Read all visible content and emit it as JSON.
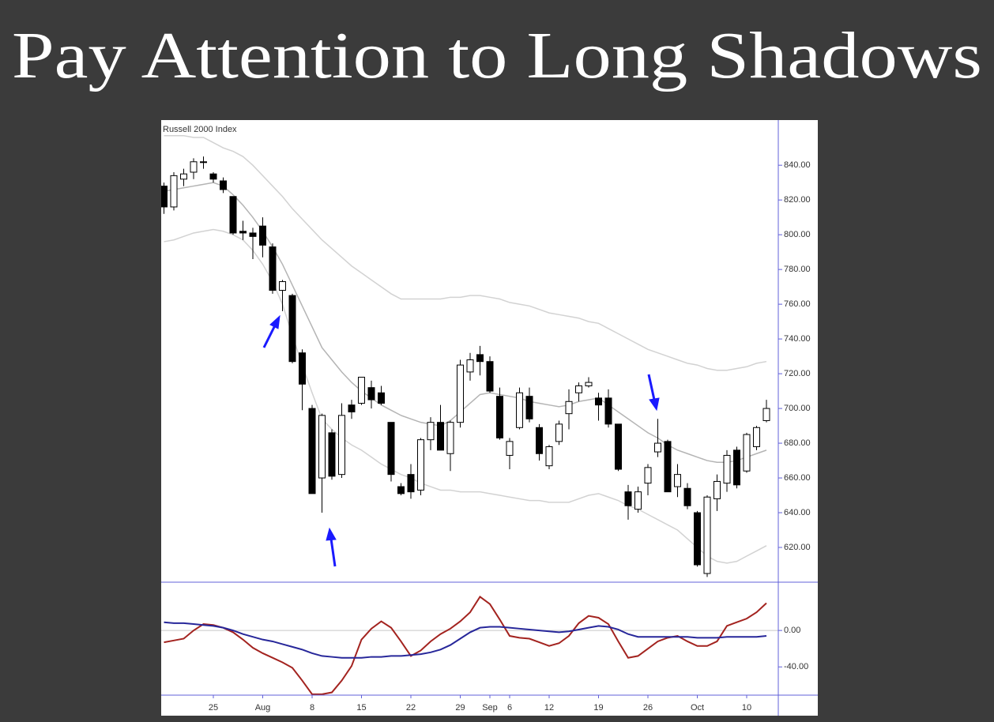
{
  "title": "Pay Attention to Long Shadows",
  "chart_data": [
    {
      "type": "candlestick",
      "title": "Russell 2000 Index",
      "categories": [
        null,
        null,
        null,
        null,
        null,
        "25",
        null,
        null,
        null,
        null,
        "Aug",
        null,
        null,
        null,
        null,
        "8",
        null,
        null,
        null,
        null,
        "15",
        null,
        null,
        null,
        null,
        "22",
        null,
        null,
        null,
        null,
        "29",
        null,
        null,
        "Sep",
        null,
        "6",
        null,
        null,
        null,
        "12",
        null,
        null,
        null,
        null,
        "19",
        null,
        null,
        null,
        null,
        "26",
        null,
        null,
        null,
        null,
        "Oct",
        null,
        null,
        null,
        null,
        "10",
        null,
        null
      ],
      "open": [
        828,
        816,
        832,
        836,
        842,
        835,
        831,
        822,
        802,
        801,
        805,
        793,
        768,
        765,
        732,
        700,
        660,
        686,
        662,
        702,
        703,
        712,
        709,
        692,
        655,
        662,
        653,
        682,
        692,
        674,
        692,
        721,
        731,
        727,
        707,
        673,
        689,
        707,
        689,
        667,
        681,
        697,
        709,
        713,
        706,
        706,
        691,
        652,
        642,
        657,
        675,
        681,
        655,
        654,
        640,
        605,
        648,
        657,
        676,
        664,
        678,
        693
      ],
      "high": [
        830,
        836,
        838,
        844,
        845,
        836,
        833,
        822,
        808,
        804,
        810,
        795,
        774,
        766,
        734,
        702,
        697,
        688,
        703,
        705,
        718,
        716,
        713,
        692,
        657,
        668,
        683,
        695,
        702,
        693,
        728,
        732,
        736,
        730,
        712,
        683,
        712,
        712,
        691,
        679,
        693,
        711,
        715,
        718,
        709,
        711,
        691,
        656,
        655,
        668,
        694,
        682,
        668,
        657,
        641,
        650,
        662,
        676,
        678,
        686,
        690,
        705
      ],
      "low": [
        812,
        814,
        828,
        832,
        838,
        830,
        824,
        800,
        797,
        786,
        787,
        766,
        756,
        726,
        699,
        651,
        640,
        659,
        660,
        694,
        702,
        700,
        702,
        658,
        650,
        648,
        650,
        676,
        676,
        664,
        689,
        716,
        719,
        709,
        682,
        665,
        688,
        692,
        670,
        665,
        679,
        688,
        704,
        712,
        693,
        689,
        664,
        636,
        640,
        650,
        672,
        652,
        649,
        642,
        609,
        603,
        641,
        652,
        654,
        663,
        676,
        692
      ],
      "close": [
        816,
        834,
        835,
        842,
        842,
        832,
        826,
        801,
        801,
        799,
        794,
        768,
        773,
        727,
        714,
        651,
        696,
        661,
        696,
        698,
        718,
        705,
        703,
        662,
        651,
        652,
        682,
        692,
        676,
        692,
        725,
        728,
        727,
        710,
        683,
        681,
        709,
        694,
        674,
        678,
        691,
        704,
        713,
        715,
        702,
        691,
        665,
        644,
        652,
        666,
        680,
        652,
        662,
        644,
        610,
        649,
        658,
        673,
        656,
        685,
        689,
        700
      ],
      "bands": [
        {
          "color": "#d2d2d2",
          "values": [
            857,
            857,
            857,
            856,
            856,
            853,
            850,
            848,
            845,
            840,
            834,
            828,
            822,
            815,
            809,
            803,
            797,
            792,
            787,
            782,
            778,
            774,
            770,
            766,
            763,
            763,
            763,
            763,
            763,
            764,
            764,
            765,
            765,
            764,
            763,
            761,
            760,
            759,
            757,
            755,
            754,
            753,
            752,
            750,
            749,
            746,
            743,
            740,
            737,
            734,
            732,
            730,
            728,
            726,
            725,
            723,
            722,
            722,
            723,
            724,
            726,
            727
          ]
        },
        {
          "color": "#b4b4b4",
          "values": [
            825,
            826,
            827,
            828,
            829,
            830,
            828,
            823,
            817,
            810,
            802,
            793,
            783,
            771,
            759,
            747,
            735,
            728,
            721,
            715,
            710,
            706,
            702,
            699,
            696,
            694,
            692,
            691,
            690,
            693,
            698,
            703,
            708,
            709,
            708,
            707,
            706,
            704,
            703,
            702,
            701,
            702,
            704,
            705,
            706,
            702,
            698,
            694,
            690,
            686,
            683,
            679,
            676,
            674,
            672,
            670,
            669,
            669,
            670,
            672,
            674,
            676
          ]
        },
        {
          "color": "#d2d2d2",
          "values": [
            796,
            797,
            799,
            801,
            802,
            803,
            802,
            800,
            797,
            791,
            783,
            773,
            760,
            742,
            725,
            709,
            694,
            688,
            683,
            679,
            676,
            672,
            668,
            665,
            662,
            660,
            657,
            655,
            653,
            653,
            652,
            652,
            652,
            651,
            650,
            649,
            648,
            647,
            647,
            646,
            646,
            646,
            648,
            650,
            651,
            649,
            647,
            644,
            642,
            639,
            636,
            633,
            630,
            625,
            620,
            615,
            612,
            611,
            612,
            615,
            618,
            621
          ]
        }
      ],
      "ylim": [
        600,
        866
      ],
      "yticks": [
        {
          "value": 620,
          "label": "620.00"
        },
        {
          "value": 640,
          "label": "640.00"
        },
        {
          "value": 660,
          "label": "660.00"
        },
        {
          "value": 680,
          "label": "680.00"
        },
        {
          "value": 700,
          "label": "700.00"
        },
        {
          "value": 720,
          "label": "720.00"
        },
        {
          "value": 740,
          "label": "740.00"
        },
        {
          "value": 760,
          "label": "760.00"
        },
        {
          "value": 780,
          "label": "780.00"
        },
        {
          "value": 800,
          "label": "800.00"
        },
        {
          "value": 820,
          "label": "820.00"
        },
        {
          "value": 840,
          "label": "840.00"
        }
      ]
    },
    {
      "type": "line",
      "series": [
        {
          "color": "#a3231f",
          "values": [
            -13,
            -11,
            -9,
            0,
            7,
            6,
            3,
            -2,
            -10,
            -19,
            -25,
            -30,
            -35,
            -41,
            -55,
            -70,
            -70,
            -68,
            -55,
            -39,
            -10,
            2,
            10,
            3,
            -12,
            -28,
            -22,
            -12,
            -4,
            2,
            10,
            20,
            37,
            29,
            12,
            -6,
            -8,
            -9,
            -13,
            -17,
            -14,
            -6,
            8,
            16,
            14,
            7,
            -12,
            -30,
            -28,
            -20,
            -12,
            -8,
            -6,
            -12,
            -17,
            -17,
            -12,
            5,
            9,
            13,
            20,
            30
          ]
        },
        {
          "color": "#27279a",
          "values": [
            9,
            8,
            8,
            7,
            6,
            5,
            3,
            0,
            -4,
            -7,
            -10,
            -12,
            -15,
            -18,
            -21,
            -25,
            -28,
            -29,
            -30,
            -30,
            -30,
            -29,
            -29,
            -28,
            -28,
            -27,
            -26,
            -24,
            -21,
            -16,
            -9,
            -2,
            3,
            4,
            4,
            3,
            2,
            1,
            0,
            -1,
            -2,
            -1,
            1,
            3,
            5,
            4,
            1,
            -4,
            -7,
            -7,
            -7,
            -7,
            -7,
            -7,
            -8,
            -8,
            -8,
            -7,
            -7,
            -7,
            -7,
            -6
          ]
        }
      ],
      "ylim": [
        -71,
        53
      ],
      "yticks": [
        {
          "value": 0,
          "label": "0.00"
        },
        {
          "value": -40,
          "label": "-40.00"
        }
      ]
    }
  ]
}
